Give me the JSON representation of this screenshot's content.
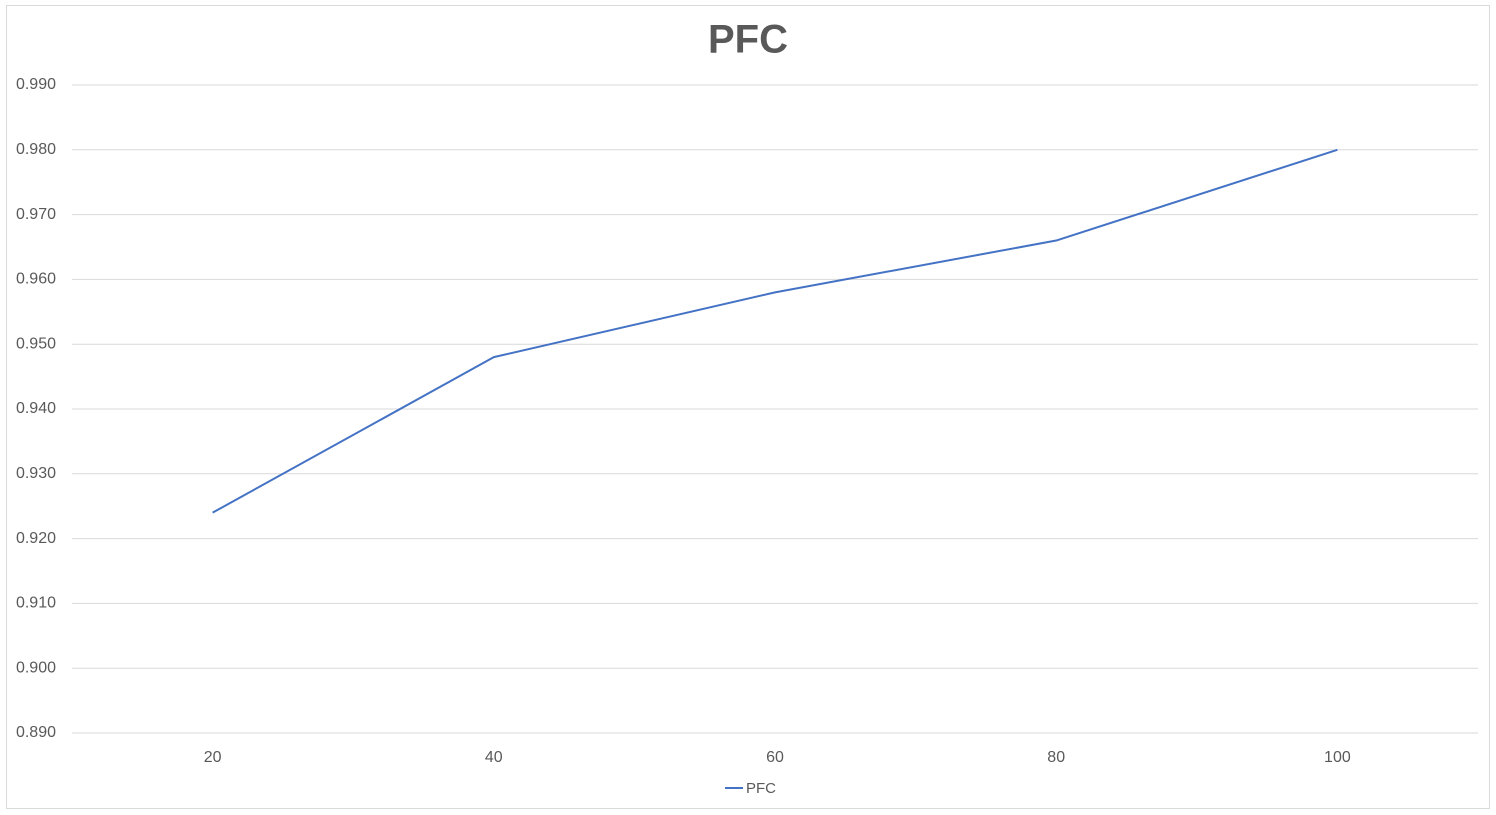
{
  "chart_data": {
    "type": "line",
    "title": "PFC",
    "categories": [
      "20",
      "40",
      "60",
      "80",
      "100"
    ],
    "series": [
      {
        "name": "PFC",
        "color": "#4472c4",
        "values": [
          0.924,
          0.948,
          0.958,
          0.966,
          0.98
        ]
      }
    ],
    "ylim": [
      0.89,
      0.99
    ],
    "yticks": [
      {
        "value": 0.89,
        "label": "0.890"
      },
      {
        "value": 0.9,
        "label": "0.900"
      },
      {
        "value": 0.91,
        "label": "0.910"
      },
      {
        "value": 0.92,
        "label": "0.920"
      },
      {
        "value": 0.93,
        "label": "0.930"
      },
      {
        "value": 0.94,
        "label": "0.940"
      },
      {
        "value": 0.95,
        "label": "0.950"
      },
      {
        "value": 0.96,
        "label": "0.960"
      },
      {
        "value": 0.97,
        "label": "0.970"
      },
      {
        "value": 0.98,
        "label": "0.980"
      },
      {
        "value": 0.99,
        "label": "0.990"
      }
    ],
    "grid": true,
    "legend": "bottom"
  }
}
